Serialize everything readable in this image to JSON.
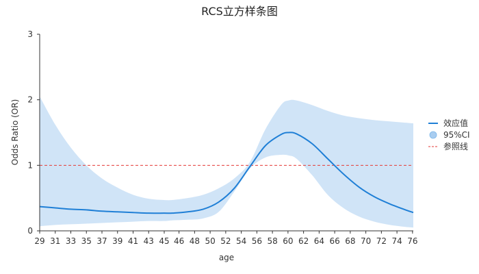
{
  "chart_data": {
    "type": "line",
    "title": "RCS立方样条图",
    "xlabel": "age",
    "ylabel": "Odds Ratio (OR)",
    "xlim": [
      29,
      77
    ],
    "ylim": [
      0,
      3
    ],
    "x_ticks": [
      29,
      31,
      33,
      35,
      37,
      39,
      41,
      43,
      45,
      46,
      48,
      50,
      52,
      54,
      56,
      58,
      60,
      62,
      64,
      66,
      68,
      70,
      72,
      74,
      76
    ],
    "y_ticks": [
      0,
      1,
      2,
      3
    ],
    "reference_line": {
      "y": 1,
      "color": "#e53935",
      "style": "dashed",
      "name": "参照线"
    },
    "series": [
      {
        "name": "效应值",
        "color": "#1f7fd6",
        "x": [
          29,
          31,
          33,
          35,
          37,
          39,
          41,
          43,
          45,
          46,
          48,
          50,
          52,
          54,
          56,
          58,
          60,
          61,
          62,
          64,
          66,
          68,
          70,
          72,
          74,
          76,
          77
        ],
        "y": [
          0.37,
          0.35,
          0.33,
          0.32,
          0.3,
          0.29,
          0.28,
          0.27,
          0.27,
          0.27,
          0.29,
          0.33,
          0.44,
          0.65,
          0.98,
          1.3,
          1.47,
          1.5,
          1.48,
          1.33,
          1.1,
          0.87,
          0.67,
          0.52,
          0.41,
          0.32,
          0.28
        ]
      }
    ],
    "ci": {
      "name": "95%CI",
      "color": "#a9cdf0",
      "x": [
        29,
        31,
        33,
        35,
        37,
        39,
        41,
        43,
        45,
        46,
        48,
        50,
        52,
        54,
        56,
        58,
        60,
        61,
        62,
        64,
        66,
        68,
        70,
        72,
        74,
        76,
        77
      ],
      "lower": [
        0.07,
        0.09,
        0.1,
        0.11,
        0.12,
        0.13,
        0.14,
        0.15,
        0.15,
        0.16,
        0.17,
        0.19,
        0.29,
        0.6,
        0.95,
        1.12,
        1.16,
        1.15,
        1.1,
        0.85,
        0.55,
        0.35,
        0.22,
        0.14,
        0.09,
        0.06,
        0.05
      ],
      "upper": [
        2.05,
        1.62,
        1.27,
        1.0,
        0.8,
        0.66,
        0.55,
        0.49,
        0.47,
        0.47,
        0.5,
        0.55,
        0.65,
        0.8,
        1.05,
        1.55,
        1.92,
        1.99,
        1.99,
        1.92,
        1.83,
        1.76,
        1.72,
        1.69,
        1.67,
        1.65,
        1.64
      ]
    },
    "legend": {
      "position": "right",
      "entries": [
        "效应值",
        "95%CI",
        "参照线"
      ]
    },
    "grid": false
  }
}
